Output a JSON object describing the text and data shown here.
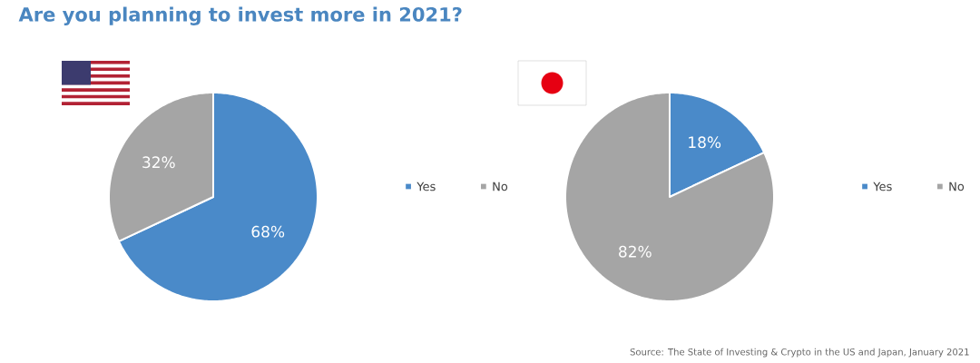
{
  "chart_data": [
    {
      "type": "pie",
      "title": "Are you planning to invest more in 2021?",
      "categories": [
        "Yes",
        "No"
      ],
      "values": [
        68,
        32
      ],
      "colors": [
        "#4a8ac9",
        "#a5a5a5"
      ],
      "value_labels": [
        "68%",
        "32%"
      ],
      "legend": "right"
    },
    {
      "type": "pie",
      "categories": [
        "Yes",
        "No"
      ],
      "values": [
        18,
        82
      ],
      "colors": [
        "#4a8ac9",
        "#a5a5a5"
      ],
      "value_labels": [
        "18%",
        "82%"
      ],
      "legend": "right",
      "annotations": [
        "Source: The State of Investing & Crypto in the US and Japan, January 2021"
      ]
    }
  ]
}
